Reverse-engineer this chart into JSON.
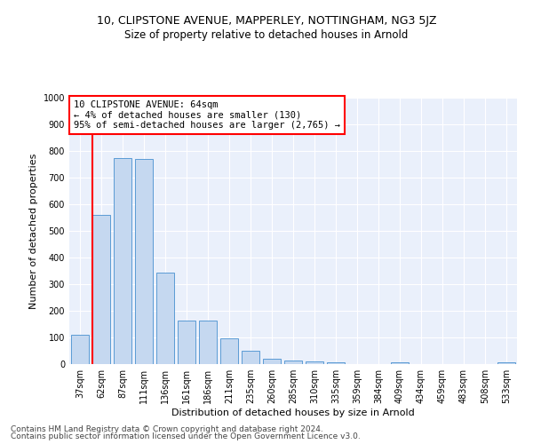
{
  "title1": "10, CLIPSTONE AVENUE, MAPPERLEY, NOTTINGHAM, NG3 5JZ",
  "title2": "Size of property relative to detached houses in Arnold",
  "xlabel": "Distribution of detached houses by size in Arnold",
  "ylabel": "Number of detached properties",
  "footer1": "Contains HM Land Registry data © Crown copyright and database right 2024.",
  "footer2": "Contains public sector information licensed under the Open Government Licence v3.0.",
  "annotation_line1": "10 CLIPSTONE AVENUE: 64sqm",
  "annotation_line2": "← 4% of detached houses are smaller (130)",
  "annotation_line3": "95% of semi-detached houses are larger (2,765) →",
  "bar_labels": [
    "37sqm",
    "62sqm",
    "87sqm",
    "111sqm",
    "136sqm",
    "161sqm",
    "186sqm",
    "211sqm",
    "235sqm",
    "260sqm",
    "285sqm",
    "310sqm",
    "335sqm",
    "359sqm",
    "384sqm",
    "409sqm",
    "434sqm",
    "459sqm",
    "483sqm",
    "508sqm",
    "533sqm"
  ],
  "bar_values": [
    110,
    560,
    775,
    770,
    345,
    163,
    163,
    97,
    50,
    20,
    13,
    10,
    8,
    0,
    0,
    8,
    0,
    0,
    0,
    0,
    8
  ],
  "bar_color": "#c5d8f0",
  "bar_edge_color": "#5b9bd5",
  "red_line_index": 1,
  "ylim": [
    0,
    1000
  ],
  "yticks": [
    0,
    100,
    200,
    300,
    400,
    500,
    600,
    700,
    800,
    900,
    1000
  ],
  "bg_color": "#eaf0fb",
  "title1_fontsize": 9,
  "title2_fontsize": 8.5,
  "annotation_fontsize": 7.5,
  "tick_fontsize": 7,
  "xlabel_fontsize": 8,
  "ylabel_fontsize": 8,
  "footer_fontsize": 6.5
}
